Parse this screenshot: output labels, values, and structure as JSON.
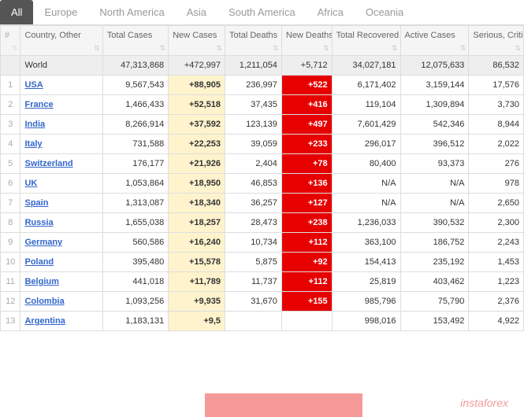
{
  "tabs": {
    "items": [
      "All",
      "Europe",
      "North America",
      "Asia",
      "South America",
      "Africa",
      "Oceania"
    ],
    "active_index": 0
  },
  "columns": {
    "num": "#",
    "country": "Country, Other",
    "total_cases": "Total Cases",
    "new_cases": "New Cases",
    "total_deaths": "Total Deaths",
    "new_deaths": "New Deaths",
    "recovered": "Total Recovered",
    "active": "Active Cases",
    "serious": "Serious, Critical"
  },
  "world_row": {
    "label": "World",
    "total_cases": "47,313,868",
    "new_cases": "+472,997",
    "total_deaths": "1,211,054",
    "new_deaths": "+5,712",
    "recovered": "34,027,181",
    "active": "12,075,633",
    "serious": "86,532"
  },
  "rows": [
    {
      "n": "1",
      "country": "USA",
      "flag": true,
      "total_cases": "9,567,543",
      "new_cases": "+88,905",
      "total_deaths": "236,997",
      "new_deaths": "+522",
      "recovered": "6,171,402",
      "active": "3,159,144",
      "serious": "17,576"
    },
    {
      "n": "2",
      "country": "France",
      "flag": true,
      "total_cases": "1,466,433",
      "new_cases": "+52,518",
      "total_deaths": "37,435",
      "new_deaths": "+416",
      "recovered": "119,104",
      "active": "1,309,894",
      "serious": "3,730"
    },
    {
      "n": "3",
      "country": "India",
      "flag": true,
      "total_cases": "8,266,914",
      "new_cases": "+37,592",
      "total_deaths": "123,139",
      "new_deaths": "+497",
      "recovered": "7,601,429",
      "active": "542,346",
      "serious": "8,944"
    },
    {
      "n": "4",
      "country": "Italy",
      "flag": true,
      "total_cases": "731,588",
      "new_cases": "+22,253",
      "total_deaths": "39,059",
      "new_deaths": "+233",
      "recovered": "296,017",
      "active": "396,512",
      "serious": "2,022"
    },
    {
      "n": "5",
      "country": "Switzerland",
      "flag": true,
      "total_cases": "176,177",
      "new_cases": "+21,926",
      "total_deaths": "2,404",
      "new_deaths": "+78",
      "recovered": "80,400",
      "active": "93,373",
      "serious": "276"
    },
    {
      "n": "6",
      "country": "UK",
      "flag": true,
      "total_cases": "1,053,864",
      "new_cases": "+18,950",
      "total_deaths": "46,853",
      "new_deaths": "+136",
      "recovered": "N/A",
      "active": "N/A",
      "serious": "978"
    },
    {
      "n": "7",
      "country": "Spain",
      "flag": true,
      "total_cases": "1,313,087",
      "new_cases": "+18,340",
      "total_deaths": "36,257",
      "new_deaths": "+127",
      "recovered": "N/A",
      "active": "N/A",
      "serious": "2,650"
    },
    {
      "n": "8",
      "country": "Russia",
      "flag": true,
      "total_cases": "1,655,038",
      "new_cases": "+18,257",
      "total_deaths": "28,473",
      "new_deaths": "+238",
      "recovered": "1,236,033",
      "active": "390,532",
      "serious": "2,300"
    },
    {
      "n": "9",
      "country": "Germany",
      "flag": true,
      "total_cases": "560,586",
      "new_cases": "+16,240",
      "total_deaths": "10,734",
      "new_deaths": "+112",
      "recovered": "363,100",
      "active": "186,752",
      "serious": "2,243"
    },
    {
      "n": "10",
      "country": "Poland",
      "flag": true,
      "total_cases": "395,480",
      "new_cases": "+15,578",
      "total_deaths": "5,875",
      "new_deaths": "+92",
      "recovered": "154,413",
      "active": "235,192",
      "serious": "1,453"
    },
    {
      "n": "11",
      "country": "Belgium",
      "flag": true,
      "total_cases": "441,018",
      "new_cases": "+11,789",
      "total_deaths": "11,737",
      "new_deaths": "+112",
      "recovered": "25,819",
      "active": "403,462",
      "serious": "1,223"
    },
    {
      "n": "12",
      "country": "Colombia",
      "flag": true,
      "total_cases": "1,093,256",
      "new_cases": "+9,935",
      "total_deaths": "31,670",
      "new_deaths": "+155",
      "recovered": "985,796",
      "active": "75,790",
      "serious": "2,376"
    },
    {
      "n": "13",
      "country": "Argentina",
      "flag": true,
      "total_cases": "1,183,131",
      "new_cases": "+9,5",
      "total_deaths": "",
      "new_deaths": "",
      "recovered": "998,016",
      "active": "153,492",
      "serious": "4,922"
    }
  ],
  "watermark": "instaforex",
  "colors": {
    "new_cases_bg": "#fff3cd",
    "new_deaths_bg": "#e60000",
    "link": "#3366cc",
    "tab_active_bg": "#555555",
    "border": "#dddddd"
  }
}
